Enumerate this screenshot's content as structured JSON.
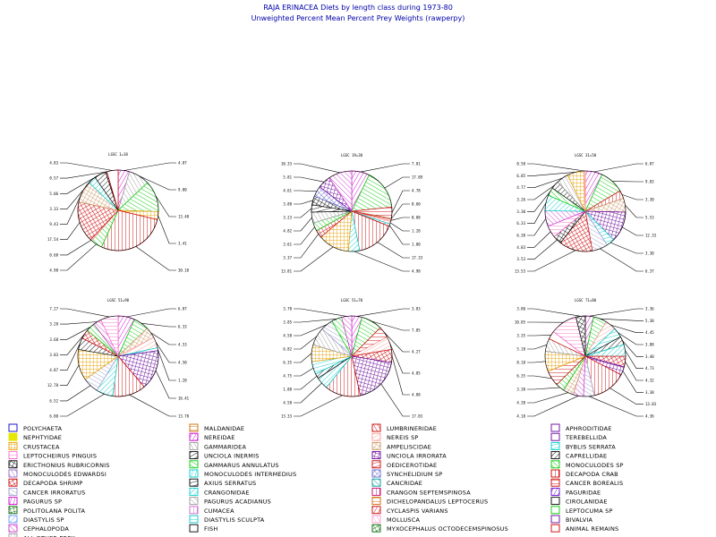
{
  "chart_data": {
    "type": "pie",
    "title": "RAJA ERINACEA Diets by length class during 1973-80",
    "subtitle": "Unweighted Percent Mean Percent Prey  Weights (rawperpy)",
    "categories": [
      "POLYCHAETA",
      "NEPHTYIDAE",
      "CRUSTACEA",
      "LEPTOCHEIRUS PINGUIS",
      "ERICTHONIUS RUBRICORNIS",
      "MONOCULODES EDWARDSI",
      "DECAPODA SHRIMP",
      "CANCER IRRORATUS",
      "PAGURUS SP",
      "POLITOLANA POLITA",
      "DIASTYLIS SP",
      "CEPHALOPODA",
      "ALL OTHER PREY",
      "MALDANIDAE",
      "NEREIDAE",
      "GAMMARIDEA",
      "UNCIOLA INERMIS",
      "GAMMARUS ANNULATUS",
      "MONOCULODES INTERMEDIUS",
      "AXIUS SERRATUS",
      "CRANGONIDAE",
      "PAGURUS ACADIANUS",
      "CUMACEA",
      "DIASTYLIS SCULPTA",
      "FISH",
      "LUMBRINERIDAE",
      "NEREIS SP",
      "AMPELISCIDAE",
      "UNCIOLA IRRORATA",
      "OEDICEROTIDAE",
      "SYNCHELIDIUM SP",
      "CANCRIDAE",
      "CRANGON SEPTEMSPINOSA",
      "DICHELOPANDALUS LEPTOCERUS",
      "CYCLASPIS VARIANS",
      "MOLLUSCA",
      "MYXOCEPHALUS OCTODECEMSPINOSUS",
      "APHRODITIDAE",
      "TEREBELLIDA",
      "BYBLIS SERRATA",
      "CAPRELLIDAE",
      "MONOCULODES SP",
      "DECAPODA CRAB",
      "CANCER BOREALIS",
      "PAGURIDAE",
      "CIROLANIDAE",
      "LEPTOCUMA SP",
      "BIVALVIA",
      "ANIMAL REMAINS"
    ],
    "pies": [
      {
        "title": "LGSC 1=18",
        "slices": [
          {
            "cat": "NEREIDAE",
            "value": 4.87
          },
          {
            "cat": "GAMMARIDEA",
            "value": 9.0
          },
          {
            "cat": "GAMMARUS ANNULATUS",
            "value": 13.48
          },
          {
            "cat": "CRUSTACEA",
            "value": 3.41
          },
          {
            "cat": "DECAPODA CRAB",
            "value": 30.1
          },
          {
            "cat": "MONOCULODES SP",
            "value": 4.98
          },
          {
            "cat": "NEREIS SP",
            "value": 0.6
          },
          {
            "cat": "DECAPODA SHRIMP",
            "value": 17.54
          },
          {
            "cat": "AMPELISCIDAE",
            "value": 9.43
          },
          {
            "cat": "CRANGONIDAE",
            "value": 3.33
          },
          {
            "cat": "CAPRELLIDAE",
            "value": 5.06
          },
          {
            "cat": "ERICTHONIUS RUBRICORNIS",
            "value": 0.57
          },
          {
            "cat": "ANIMAL REMAINS",
            "value": 4.83
          }
        ]
      },
      {
        "title": "LGSC 19=30",
        "slices": [
          {
            "cat": "NEREIDAE",
            "value": 7.81
          },
          {
            "cat": "GAMMARUS ANNULATUS",
            "value": 17.89
          },
          {
            "cat": "CANCER BOREALIS",
            "value": 4.78
          },
          {
            "cat": "AMPELISCIDAE",
            "value": 0.6
          },
          {
            "cat": "ANIMAL REMAINS",
            "value": 0.88
          },
          {
            "cat": "NEREIS SP",
            "value": 1.2
          },
          {
            "cat": "BYBLIS SERRATA",
            "value": 1.0
          },
          {
            "cat": "DECAPODA CRAB",
            "value": 17.33
          },
          {
            "cat": "CRANGONIDAE",
            "value": 4.98
          },
          {
            "cat": "CRUSTACEA",
            "value": 13.81
          },
          {
            "cat": "DECAPODA SHRIMP",
            "value": 3.37
          },
          {
            "cat": "MONOCULODES SP",
            "value": 3.61
          },
          {
            "cat": "GAMMARIDEA",
            "value": 4.82
          },
          {
            "cat": "AXIUS SERRATUS",
            "value": 3.23
          },
          {
            "cat": "ERICTHONIUS RUBRICORNIS",
            "value": 3.88
          },
          {
            "cat": "SYNCHELIDIUM SP",
            "value": 4.61
          },
          {
            "cat": "UNCIOLA IRRORATA",
            "value": 5.81
          },
          {
            "cat": "CEPHALOPODA",
            "value": 10.33
          }
        ]
      },
      {
        "title": "LGSC 31=50",
        "slices": [
          {
            "cat": "NEREIDAE",
            "value": 6.87
          },
          {
            "cat": "GAMMARUS ANNULATUS",
            "value": 9.83
          },
          {
            "cat": "DECAPODA CRAB",
            "value": 3.3
          },
          {
            "cat": "AMPELISCIDAE",
            "value": 5.53
          },
          {
            "cat": "UNCIOLA IRRORATA",
            "value": 12.33
          },
          {
            "cat": "BYBLIS SERRATA",
            "value": 3.3
          },
          {
            "cat": "CANCER IRRORATUS",
            "value": 6.37
          },
          {
            "cat": "DECAPODA SHRIMP",
            "value": 13.53
          },
          {
            "cat": "ERICTHONIUS RUBRICORNIS",
            "value": 3.53
          },
          {
            "cat": "LEPTOCHEIRUS PINGUIS",
            "value": 4.83
          },
          {
            "cat": "CEPHALOPODA",
            "value": 6.3
          },
          {
            "cat": "CRANGONIDAE",
            "value": 6.33
          },
          {
            "cat": "MONOCULODES SP",
            "value": 3.3
          },
          {
            "cat": "CAPRELLIDAE",
            "value": 3.26
          },
          {
            "cat": "GAMMARIDEA",
            "value": 4.77
          },
          {
            "cat": "CRUSTACEA",
            "value": 6.85
          },
          {
            "cat": "NEREIS SP",
            "value": 0.5
          }
        ]
      },
      {
        "title": "LGSC 51=90",
        "slices": [
          {
            "cat": "NEREIDAE",
            "value": 6.87
          },
          {
            "cat": "GAMMARUS ANNULATUS",
            "value": 6.33
          },
          {
            "cat": "AMPELISCIDAE",
            "value": 4.53
          },
          {
            "cat": "NEREIS SP",
            "value": 4.5
          },
          {
            "cat": "BYBLIS SERRATA",
            "value": 1.2
          },
          {
            "cat": "UNCIOLA IRRORATA",
            "value": 16.41
          },
          {
            "cat": "DECAPODA CRAB",
            "value": 13.78
          },
          {
            "cat": "CRANGONIDAE",
            "value": 6.88
          },
          {
            "cat": "CANCER IRRORATUS",
            "value": 6.52
          },
          {
            "cat": "CRUSTACEA",
            "value": 12.78
          },
          {
            "cat": "CAPRELLIDAE",
            "value": 4.87
          },
          {
            "cat": "DECAPODA SHRIMP",
            "value": 3.83
          },
          {
            "cat": "MONOCULODES SP",
            "value": 3.68
          },
          {
            "cat": "CEPHALOPODA",
            "value": 3.28
          },
          {
            "cat": "LEPTOCHEIRUS PINGUIS",
            "value": 7.27
          }
        ]
      },
      {
        "title": "LGSC 51=70",
        "slices": [
          {
            "cat": "NEREIDAE",
            "value": 3.83
          },
          {
            "cat": "GAMMARUS ANNULATUS",
            "value": 7.85
          },
          {
            "cat": "CANCER BOREALIS",
            "value": 4.27
          },
          {
            "cat": "NEREIS SP",
            "value": 4.85
          },
          {
            "cat": "DECAPODA SHRIMP",
            "value": 4.88
          },
          {
            "cat": "UNCIOLA IRRORATA",
            "value": 17.83
          },
          {
            "cat": "DECAPODA CRAB",
            "value": 13.33
          },
          {
            "cat": "CRANGONIDAE",
            "value": 4.58
          },
          {
            "cat": "CAPRELLIDAE",
            "value": 1.8
          },
          {
            "cat": "BYBLIS SERRATA",
            "value": 4.75
          },
          {
            "cat": "CRUSTACEA",
            "value": 6.35
          },
          {
            "cat": "GAMMARIDEA",
            "value": 6.82
          },
          {
            "cat": "CANCER IRRORATUS",
            "value": 4.58
          },
          {
            "cat": "MONOCULODES SP",
            "value": 3.85
          },
          {
            "cat": "CEPHALOPODA",
            "value": 3.78
          }
        ]
      },
      {
        "title": "LGSC 71=80",
        "slices": [
          {
            "cat": "NEREIDAE",
            "value": 3.36
          },
          {
            "cat": "GAMMARUS ANNULATUS",
            "value": 5.38
          },
          {
            "cat": "NEREIS SP",
            "value": 4.45
          },
          {
            "cat": "BYBLIS SERRATA",
            "value": 3.88
          },
          {
            "cat": "CAPRELLIDAE",
            "value": 3.4
          },
          {
            "cat": "CRANGONIDAE",
            "value": 4.73
          },
          {
            "cat": "DECAPODA SHRIMP",
            "value": 4.32
          },
          {
            "cat": "UNCIOLA IRRORATA",
            "value": 3.38
          },
          {
            "cat": "DECAPODA CRAB",
            "value": 13.83
          },
          {
            "cat": "CANCER IRRORATUS",
            "value": 4.36
          },
          {
            "cat": "CEPHALOPODA",
            "value": 4.18
          },
          {
            "cat": "AMPELISCIDAE",
            "value": 4.38
          },
          {
            "cat": "MONOCULODES SP",
            "value": 3.38
          },
          {
            "cat": "CANCER BOREALIS",
            "value": 6.35
          },
          {
            "cat": "CRUSTACEA",
            "value": 8.18
          },
          {
            "cat": "GAMMARIDEA",
            "value": 5.18
          },
          {
            "cat": "ANIMAL REMAINS",
            "value": 3.35
          },
          {
            "cat": "LEPTOCHEIRUS PINGUIS",
            "value": 10.85
          },
          {
            "cat": "ERICTHONIUS RUBRICORNIS",
            "value": 3.8
          }
        ]
      }
    ],
    "legend": [
      {
        "label": "POLYCHAETA",
        "color": "#0000cc",
        "pattern": "blank"
      },
      {
        "label": "NEPHTYIDAE",
        "color": "#e6e600",
        "pattern": "solid"
      },
      {
        "label": "CRUSTACEA",
        "color": "#e6a000",
        "pattern": "grid"
      },
      {
        "label": "LEPTOCHEIRUS PINGUIS",
        "color": "#ff66cc",
        "pattern": "hatch"
      },
      {
        "label": "ERICTHONIUS RUBRICORNIS",
        "color": "#000000",
        "pattern": "cross"
      },
      {
        "label": "MONOCULODES EDWARDSI",
        "color": "#9966cc",
        "pattern": "hatch"
      },
      {
        "label": "DECAPODA SHRIMP",
        "color": "#cc0000",
        "pattern": "grid"
      },
      {
        "label": "CANCER IRRORATUS",
        "color": "#9999cc",
        "pattern": "hatch"
      },
      {
        "label": "PAGURUS SP",
        "color": "#cc00cc",
        "pattern": "hatch"
      },
      {
        "label": "POLITOLANA POLITA",
        "color": "#006600",
        "pattern": "cross"
      },
      {
        "label": "DIASTYLIS SP",
        "color": "#6699ff",
        "pattern": "hatch"
      },
      {
        "label": "CEPHALOPODA",
        "color": "#cc33cc",
        "pattern": "hatch"
      },
      {
        "label": "ALL OTHER PREY",
        "color": "#999999",
        "pattern": "hatch"
      },
      {
        "label": "MALDANIDAE",
        "color": "#cc6600",
        "pattern": "hatch"
      },
      {
        "label": "NEREIDAE",
        "color": "#cc00cc",
        "pattern": "hatch"
      },
      {
        "label": "GAMMARIDEA",
        "color": "#999999",
        "pattern": "hatch"
      },
      {
        "label": "UNCIOLA INERMIS",
        "color": "#000000",
        "pattern": "hatch"
      },
      {
        "label": "GAMMARUS ANNULATUS",
        "color": "#00cc00",
        "pattern": "hatch"
      },
      {
        "label": "MONOCULODES INTERMEDIUS",
        "color": "#00cccc",
        "pattern": "hatch"
      },
      {
        "label": "AXIUS SERRATUS",
        "color": "#000000",
        "pattern": "hatch"
      },
      {
        "label": "CRANGONIDAE",
        "color": "#00cccc",
        "pattern": "hatch"
      },
      {
        "label": "PAGURUS ACADIANUS",
        "color": "#999999",
        "pattern": "hatch"
      },
      {
        "label": "CUMACEA",
        "color": "#cc66cc",
        "pattern": "hatch"
      },
      {
        "label": "DIASTYLIS SCULPTA",
        "color": "#00cccc",
        "pattern": "hatch"
      },
      {
        "label": "FISH",
        "color": "#000000",
        "pattern": "blank"
      },
      {
        "label": "LUMBRINERIDAE",
        "color": "#cc0000",
        "pattern": "hatch"
      },
      {
        "label": "NEREIS SP",
        "color": "#ff9999",
        "pattern": "hatch"
      },
      {
        "label": "AMPELISCIDAE",
        "color": "#cc9966",
        "pattern": "grid"
      },
      {
        "label": "UNCIOLA IRRORATA",
        "color": "#660099",
        "pattern": "cross"
      },
      {
        "label": "OEDICEROTIDAE",
        "color": "#cc0000",
        "pattern": "hatch"
      },
      {
        "label": "SYNCHELIDIUM SP",
        "color": "#6666cc",
        "pattern": "cross"
      },
      {
        "label": "CANCRIDAE",
        "color": "#009999",
        "pattern": "hatch"
      },
      {
        "label": "CRANGON SEPTEMSPINOSA",
        "color": "#cc0066",
        "pattern": "hatch"
      },
      {
        "label": "DICHELOPANDALUS LEPTOCERUS",
        "color": "#cc6600",
        "pattern": "hatch"
      },
      {
        "label": "CYCLASPIS VARIANS",
        "color": "#cc0000",
        "pattern": "hatch"
      },
      {
        "label": "MOLLUSCA",
        "color": "#ff99cc",
        "pattern": "hatch"
      },
      {
        "label": "MYXOCEPHALUS OCTODECEMSPINOSUS",
        "color": "#006600",
        "pattern": "cross"
      },
      {
        "label": "APHRODITIDAE",
        "color": "#660099",
        "pattern": "blank"
      },
      {
        "label": "TEREBELLIDA",
        "color": "#660099",
        "pattern": "blank"
      },
      {
        "label": "BYBLIS SERRATA",
        "color": "#00cccc",
        "pattern": "hatch"
      },
      {
        "label": "CAPRELLIDAE",
        "color": "#000000",
        "pattern": "hatch"
      },
      {
        "label": "MONOCULODES SP",
        "color": "#00cc00",
        "pattern": "hatch"
      },
      {
        "label": "DECAPODA CRAB",
        "color": "#cc0000",
        "pattern": "hatch"
      },
      {
        "label": "CANCER BOREALIS",
        "color": "#cc0000",
        "pattern": "hatch"
      },
      {
        "label": "PAGURIDAE",
        "color": "#6600cc",
        "pattern": "hatch"
      },
      {
        "label": "CIROLANIDAE",
        "color": "#000000",
        "pattern": "blank"
      },
      {
        "label": "LEPTOCUMA SP",
        "color": "#00cc00",
        "pattern": "blank"
      },
      {
        "label": "BIVALVIA",
        "color": "#660099",
        "pattern": "blank"
      },
      {
        "label": "ANIMAL REMAINS",
        "color": "#cc0000",
        "pattern": "blank"
      }
    ]
  }
}
